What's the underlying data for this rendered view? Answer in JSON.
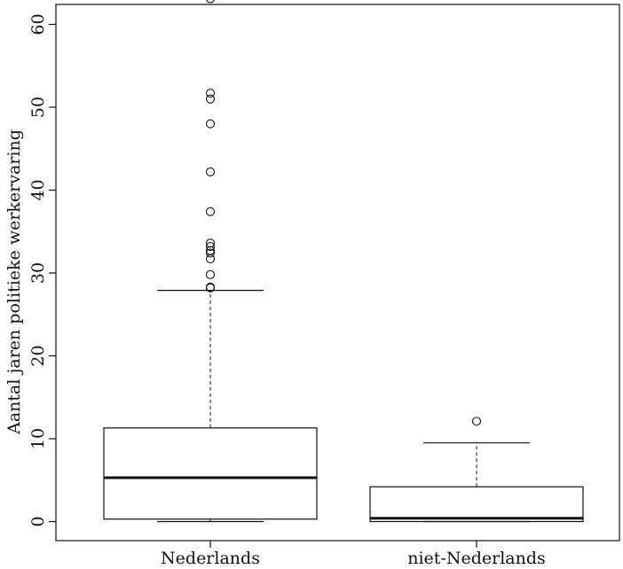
{
  "chart_data": {
    "type": "boxplot",
    "ylabel": "Aantal jaren politieke werkervaring",
    "xlabel": "",
    "ylim": [
      -2.5,
      66
    ],
    "yticks": [
      0,
      10,
      20,
      30,
      40,
      50,
      60
    ],
    "grid": false,
    "categories": [
      "Nederlands",
      "niet-Nederlands"
    ],
    "boxes": [
      {
        "name": "Nederlands",
        "whisker_low": 0,
        "q1": 0.3,
        "median": 5.3,
        "q3": 11.3,
        "whisker_high": 27.9,
        "outliers": [
          28.2,
          28.3,
          29.8,
          31.7,
          32.4,
          32.7,
          33.2,
          33.6,
          37.4,
          42.2,
          48.0,
          51.0,
          51.7,
          63.1
        ]
      },
      {
        "name": "niet-Nederlands",
        "whisker_low": 0,
        "q1": 0.0,
        "median": 0.4,
        "q3": 4.2,
        "whisker_high": 9.5,
        "outliers": [
          12.1
        ]
      }
    ]
  }
}
